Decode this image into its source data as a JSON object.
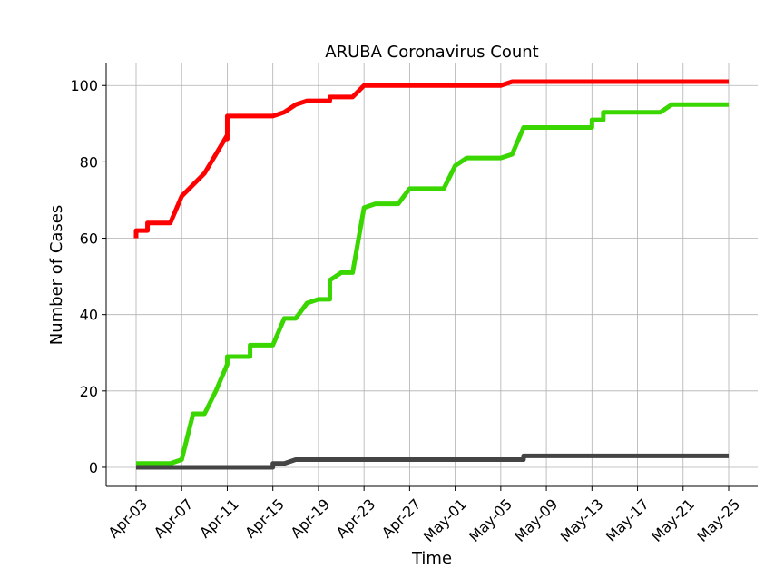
{
  "chart_data": {
    "type": "line",
    "title": "ARUBA Coronavirus Count",
    "xlabel": "Time",
    "ylabel": "Number of Cases",
    "x_start": "2020-04-03",
    "x_end": "2020-05-25",
    "x_ticks": [
      {
        "date": "2020-04-03",
        "label": "Apr-03"
      },
      {
        "date": "2020-04-07",
        "label": "Apr-07"
      },
      {
        "date": "2020-04-11",
        "label": "Apr-11"
      },
      {
        "date": "2020-04-15",
        "label": "Apr-15"
      },
      {
        "date": "2020-04-19",
        "label": "Apr-19"
      },
      {
        "date": "2020-04-23",
        "label": "Apr-23"
      },
      {
        "date": "2020-04-27",
        "label": "Apr-27"
      },
      {
        "date": "2020-05-01",
        "label": "May-01"
      },
      {
        "date": "2020-05-05",
        "label": "May-05"
      },
      {
        "date": "2020-05-09",
        "label": "May-09"
      },
      {
        "date": "2020-05-13",
        "label": "May-13"
      },
      {
        "date": "2020-05-17",
        "label": "May-17"
      },
      {
        "date": "2020-05-21",
        "label": "May-21"
      },
      {
        "date": "2020-05-25",
        "label": "May-25"
      }
    ],
    "y_ticks": [
      0,
      20,
      40,
      60,
      80,
      100
    ],
    "ylim": [
      -5,
      106
    ],
    "grid": true,
    "series": [
      {
        "color": "#ff0000",
        "points": [
          [
            "2020-04-03",
            60
          ],
          [
            "2020-04-03",
            62
          ],
          [
            "2020-04-04",
            62
          ],
          [
            "2020-04-04",
            64
          ],
          [
            "2020-04-06",
            64
          ],
          [
            "2020-04-07",
            71
          ],
          [
            "2020-04-09",
            77
          ],
          [
            "2020-04-10",
            82
          ],
          [
            "2020-04-11",
            87
          ],
          [
            "2020-04-11",
            86
          ],
          [
            "2020-04-11",
            92
          ],
          [
            "2020-04-15",
            92
          ],
          [
            "2020-04-16",
            93
          ],
          [
            "2020-04-17",
            95
          ],
          [
            "2020-04-18",
            96
          ],
          [
            "2020-04-20",
            96
          ],
          [
            "2020-04-20",
            97
          ],
          [
            "2020-04-22",
            97
          ],
          [
            "2020-04-23",
            100
          ],
          [
            "2020-05-05",
            100
          ],
          [
            "2020-05-06",
            101
          ],
          [
            "2020-05-25",
            101
          ]
        ]
      },
      {
        "color": "#3ad600",
        "points": [
          [
            "2020-04-03",
            1
          ],
          [
            "2020-04-06",
            1
          ],
          [
            "2020-04-07",
            2
          ],
          [
            "2020-04-08",
            14
          ],
          [
            "2020-04-09",
            14
          ],
          [
            "2020-04-10",
            20
          ],
          [
            "2020-04-11",
            27
          ],
          [
            "2020-04-11",
            29
          ],
          [
            "2020-04-13",
            29
          ],
          [
            "2020-04-13",
            32
          ],
          [
            "2020-04-15",
            32
          ],
          [
            "2020-04-16",
            39
          ],
          [
            "2020-04-17",
            39
          ],
          [
            "2020-04-18",
            43
          ],
          [
            "2020-04-19",
            44
          ],
          [
            "2020-04-20",
            44
          ],
          [
            "2020-04-20",
            49
          ],
          [
            "2020-04-21",
            51
          ],
          [
            "2020-04-22",
            51
          ],
          [
            "2020-04-23",
            68
          ],
          [
            "2020-04-24",
            69
          ],
          [
            "2020-04-26",
            69
          ],
          [
            "2020-04-27",
            73
          ],
          [
            "2020-04-30",
            73
          ],
          [
            "2020-05-01",
            79
          ],
          [
            "2020-05-02",
            81
          ],
          [
            "2020-05-05",
            81
          ],
          [
            "2020-05-06",
            82
          ],
          [
            "2020-05-07",
            89
          ],
          [
            "2020-05-13",
            89
          ],
          [
            "2020-05-13",
            91
          ],
          [
            "2020-05-14",
            91
          ],
          [
            "2020-05-14",
            93
          ],
          [
            "2020-05-19",
            93
          ],
          [
            "2020-05-20",
            95
          ],
          [
            "2020-05-25",
            95
          ]
        ]
      },
      {
        "color": "#444444",
        "points": [
          [
            "2020-04-03",
            0
          ],
          [
            "2020-04-15",
            0
          ],
          [
            "2020-04-15",
            1
          ],
          [
            "2020-04-16",
            1
          ],
          [
            "2020-04-17",
            2
          ],
          [
            "2020-05-07",
            2
          ],
          [
            "2020-05-07",
            3
          ],
          [
            "2020-05-25",
            3
          ]
        ]
      }
    ]
  }
}
